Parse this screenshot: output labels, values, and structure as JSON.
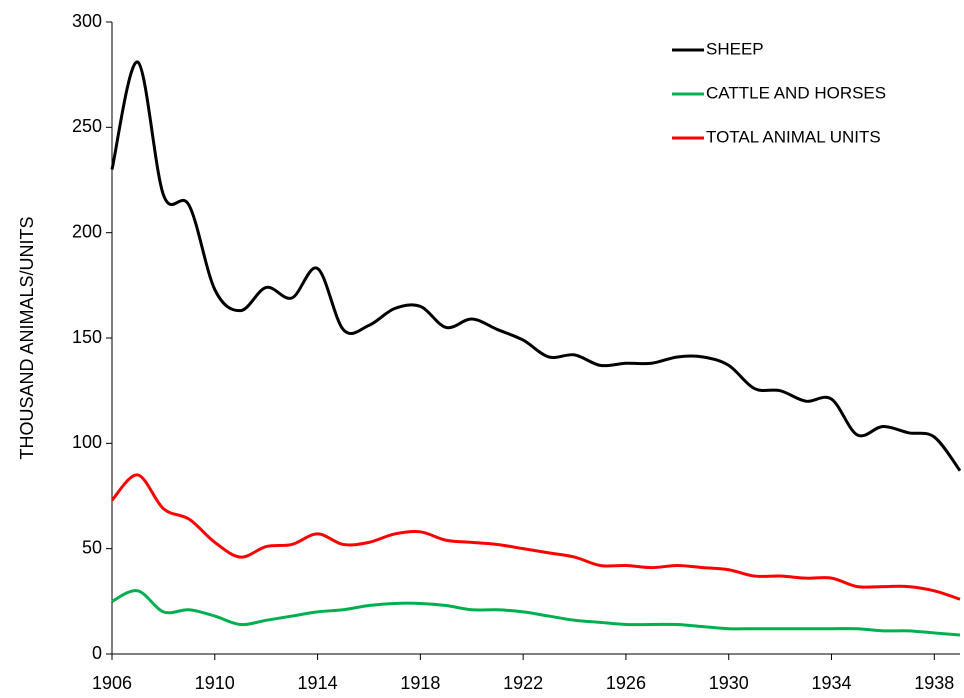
{
  "chart_data": {
    "type": "line",
    "ylabel": "THOUSAND ANIMALS/UNITS",
    "x": [
      1906,
      1907,
      1908,
      1909,
      1910,
      1911,
      1912,
      1913,
      1914,
      1915,
      1916,
      1917,
      1918,
      1919,
      1920,
      1921,
      1922,
      1923,
      1924,
      1925,
      1926,
      1927,
      1928,
      1929,
      1930,
      1931,
      1932,
      1933,
      1934,
      1935,
      1936,
      1937,
      1938,
      1939
    ],
    "series": [
      {
        "name": "SHEEP",
        "color": "#000000",
        "values": [
          230,
          281,
          218,
          213,
          173,
          163,
          174,
          169,
          183,
          154,
          156,
          164,
          165,
          155,
          159,
          154,
          149,
          141,
          142,
          137,
          138,
          138,
          141,
          141,
          137,
          126,
          125,
          120,
          121,
          104,
          108,
          105,
          103,
          87
        ]
      },
      {
        "name": "CATTLE AND HORSES",
        "color": "#00b050",
        "values": [
          25,
          30,
          20,
          21,
          18,
          14,
          16,
          18,
          20,
          21,
          23,
          24,
          24,
          23,
          21,
          21,
          20,
          18,
          16,
          15,
          14,
          14,
          14,
          13,
          12,
          12,
          12,
          12,
          12,
          12,
          11,
          11,
          10,
          9
        ]
      },
      {
        "name": "TOTAL ANIMAL UNITS",
        "color": "#ff0000",
        "values": [
          73,
          85,
          69,
          64,
          53,
          46,
          51,
          52,
          57,
          52,
          53,
          57,
          58,
          54,
          53,
          52,
          50,
          48,
          46,
          42,
          42,
          41,
          42,
          41,
          40,
          37,
          37,
          36,
          36,
          32,
          32,
          32,
          30,
          26
        ]
      }
    ],
    "xlim": [
      1906,
      1939
    ],
    "xticks": [
      1906,
      1910,
      1914,
      1918,
      1922,
      1926,
      1930,
      1934,
      1938
    ],
    "ylim": [
      0,
      300
    ],
    "yticks": [
      0,
      50,
      100,
      150,
      200,
      250,
      300
    ],
    "legend": "upper right",
    "grid": false
  }
}
